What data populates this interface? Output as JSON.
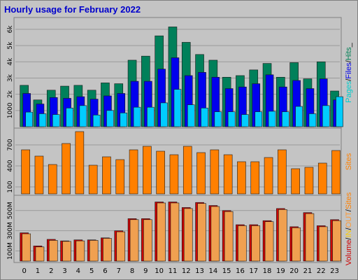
{
  "title": "Hourly usage for February 2022",
  "chart_data": [
    {
      "type": "bar",
      "panel": "top",
      "categories": [
        "0",
        "1",
        "2",
        "3",
        "4",
        "5",
        "6",
        "7",
        "8",
        "9",
        "10",
        "11",
        "12",
        "13",
        "14",
        "15",
        "16",
        "17",
        "18",
        "19",
        "20",
        "21",
        "22",
        "23"
      ],
      "y_ticks": [
        "1000",
        "2k",
        "3k",
        "4k",
        "5k",
        "6k"
      ],
      "y_tick_values": [
        1000,
        2000,
        3000,
        4000,
        5000,
        6000
      ],
      "ylim": [
        0,
        6600
      ],
      "right_label": [
        "Pages",
        "/",
        "Files",
        "/",
        "Hits",
        "_"
      ],
      "right_label_colors": [
        "#00cccc",
        "#000000",
        "#0000ee",
        "#000000",
        "#008055",
        "#000000"
      ],
      "series": [
        {
          "name": "Hits",
          "color": "#00805a",
          "values": [
            2550,
            1650,
            2250,
            2500,
            2550,
            2250,
            2700,
            2650,
            4100,
            4350,
            5600,
            6150,
            5200,
            4450,
            4100,
            3050,
            3150,
            3500,
            3900,
            3050,
            3950,
            2950,
            4000,
            2200
          ]
        },
        {
          "name": "Files",
          "color": "#0000ee",
          "values": [
            2050,
            1400,
            1800,
            1750,
            1850,
            1700,
            1900,
            2050,
            2800,
            2800,
            3550,
            4250,
            3150,
            3350,
            3050,
            2350,
            2450,
            2650,
            3200,
            2450,
            2850,
            2350,
            2950,
            1650
          ]
        },
        {
          "name": "Pages",
          "color": "#00ccff",
          "values": [
            900,
            800,
            750,
            1150,
            1300,
            720,
            1000,
            850,
            1200,
            1200,
            1470,
            2300,
            1350,
            1150,
            920,
            920,
            750,
            920,
            950,
            920,
            1250,
            800,
            1300,
            1850
          ]
        }
      ]
    },
    {
      "type": "bar",
      "panel": "middle",
      "categories": [
        "0",
        "1",
        "2",
        "3",
        "4",
        "5",
        "6",
        "7",
        "8",
        "9",
        "10",
        "11",
        "12",
        "13",
        "14",
        "15",
        "16",
        "17",
        "18",
        "19",
        "20",
        "21",
        "22",
        "23"
      ],
      "y_ticks": [
        "100",
        "400",
        "700"
      ],
      "y_tick_values": [
        100,
        400,
        700
      ],
      "ylim": [
        0,
        910
      ],
      "right_label": [
        "Sites"
      ],
      "right_label_colors": [
        "#ff8000"
      ],
      "series": [
        {
          "name": "Sites",
          "color": "#ff8000",
          "values": [
            630,
            540,
            420,
            720,
            890,
            410,
            530,
            490,
            630,
            680,
            610,
            560,
            680,
            590,
            630,
            560,
            460,
            460,
            520,
            630,
            360,
            380,
            440,
            620
          ]
        }
      ]
    },
    {
      "type": "bar",
      "panel": "bottom",
      "categories": [
        "0",
        "1",
        "2",
        "3",
        "4",
        "5",
        "6",
        "7",
        "8",
        "9",
        "10",
        "11",
        "12",
        "13",
        "14",
        "15",
        "16",
        "17",
        "18",
        "19",
        "20",
        "21",
        "22",
        "23"
      ],
      "y_ticks": [
        "100M",
        "300M",
        "500M"
      ],
      "y_tick_values": [
        100,
        300,
        500
      ],
      "ylim": [
        0,
        630
      ],
      "right_label": [
        "Volume",
        "/",
        "IN",
        "/",
        "OUT",
        "/",
        "Sites"
      ],
      "right_label_colors": [
        "#cc0000",
        "#000000",
        "#ffcc00",
        "#000000",
        "#ff9933",
        "#000000",
        "#ff8000"
      ],
      "series": [
        {
          "name": "Volume",
          "color": "#cc0000",
          "values": [
            280,
            150,
            215,
            200,
            210,
            210,
            230,
            300,
            420,
            420,
            585,
            585,
            530,
            580,
            550,
            500,
            360,
            360,
            400,
            520,
            340,
            480,
            350,
            410
          ]
        },
        {
          "name": "OUT",
          "color": "#f0a050",
          "values": [
            270,
            140,
            205,
            195,
            200,
            205,
            225,
            290,
            410,
            410,
            575,
            575,
            520,
            570,
            540,
            490,
            350,
            350,
            390,
            510,
            330,
            470,
            340,
            400
          ]
        }
      ]
    }
  ]
}
